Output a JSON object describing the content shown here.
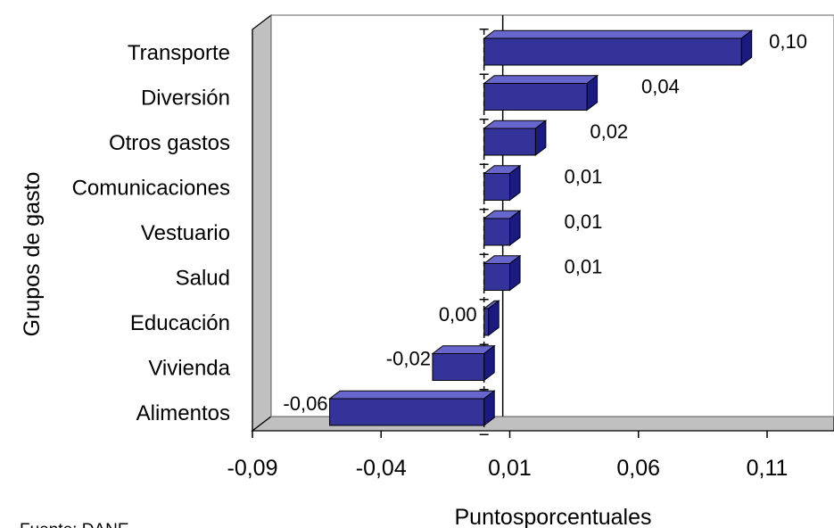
{
  "chart_data": {
    "type": "bar",
    "orientation": "horizontal",
    "style": "3d",
    "ylabel": "Grupos de gasto",
    "xlabel": "Puntosporcentuales",
    "categories": [
      "Transporte",
      "Diversión",
      "Otros gastos",
      "Comunicaciones",
      "Vestuario",
      "Salud",
      "Educación",
      "Vivienda",
      "Alimentos"
    ],
    "values": [
      0.1,
      0.04,
      0.02,
      0.01,
      0.01,
      0.01,
      0.0,
      -0.02,
      -0.06
    ],
    "value_labels": [
      "0,10",
      "0,04",
      "0,02",
      "0,01",
      "0,01",
      "0,01",
      "0,00",
      "-0,02",
      "-0,06"
    ],
    "xlim": [
      -0.09,
      0.11
    ],
    "xticks": [
      -0.09,
      -0.04,
      0.01,
      0.06,
      0.11
    ],
    "xtick_labels": [
      "-0,09",
      "-0,04",
      "0,01",
      "0,06",
      "0,11"
    ],
    "bar_color": "#333399",
    "grid": false,
    "legend": "none"
  },
  "source_note": "Fuente: DANE"
}
